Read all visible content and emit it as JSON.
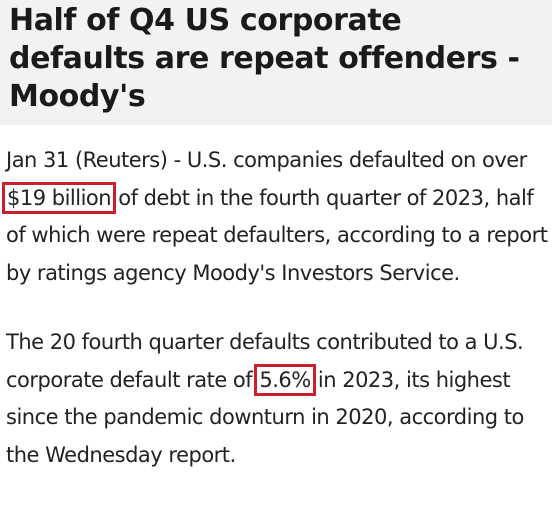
{
  "headline": {
    "line1": "Half of Q4 US corporate",
    "line2": "defaults are repeat offenders -",
    "line3": "Moody's"
  },
  "paragraph1": {
    "before": "Jan 31 (Reuters) - U.S. companies defaulted on over ",
    "highlight": "$19 billion",
    "after": " of debt in the fourth quarter of 2023, half of which were repeat defaulters, according to a report by ratings agency Moody's Investors Service."
  },
  "paragraph2": {
    "before": "The 20 fourth quarter defaults contributed to a U.S. corporate default rate of ",
    "highlight": "5.6%",
    "after": " in 2023, its highest since the pandemic downturn in 2020, according to the Wednesday report."
  },
  "highlight_color": "#c8202c"
}
